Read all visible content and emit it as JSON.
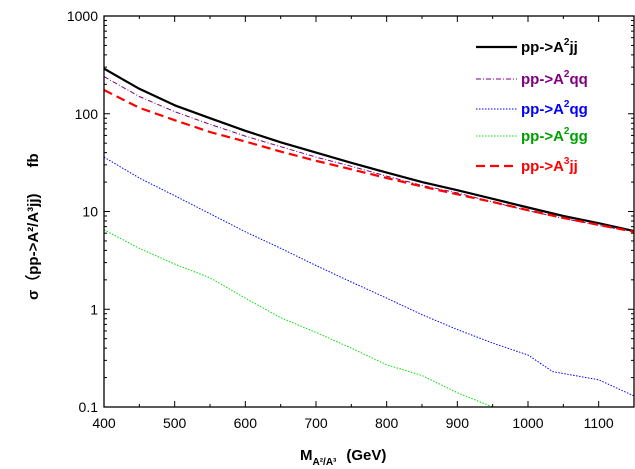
{
  "chart_data": {
    "type": "line",
    "xscale": "linear",
    "yscale": "log",
    "xlim": [
      400,
      1150
    ],
    "ylim": [
      0.1,
      1000
    ],
    "xticks": [
      {
        "value": 400,
        "label": "400"
      },
      {
        "value": 500,
        "label": "500"
      },
      {
        "value": 600,
        "label": "600"
      },
      {
        "value": 700,
        "label": "700"
      },
      {
        "value": 800,
        "label": "800"
      },
      {
        "value": 900,
        "label": "900"
      },
      {
        "value": 1000,
        "label": "1000"
      },
      {
        "value": 1100,
        "label": "1100"
      }
    ],
    "yticks": [
      {
        "value": 0.1,
        "label": "0.1"
      },
      {
        "value": 1,
        "label": "1"
      },
      {
        "value": 10,
        "label": "10"
      },
      {
        "value": 100,
        "label": "100"
      },
      {
        "value": 1000,
        "label": "1000"
      }
    ],
    "xlabel": {
      "main": "M",
      "sub": "A²/A³",
      "unit": "(GeV)"
    },
    "ylabel": {
      "text": "σ（pp->A²/A³jj)",
      "unit": "fb"
    },
    "grid": false,
    "legend_position": "top-right",
    "series": [
      {
        "name": "pp->A²jj",
        "color": "#000000",
        "dash": "solid",
        "width": 2.2,
        "x": [
          400,
          450,
          500,
          550,
          600,
          650,
          700,
          750,
          800,
          850,
          900,
          950,
          1000,
          1050,
          1100,
          1150
        ],
        "values": [
          290,
          180,
          122,
          90,
          67,
          51,
          40,
          31.5,
          25,
          20,
          16.5,
          13.5,
          11,
          9,
          7.6,
          6.3
        ]
      },
      {
        "name": "pp->A²qq",
        "color": "#800080",
        "dash": "dashdot",
        "width": 1,
        "x": [
          400,
          450,
          500,
          550,
          600,
          650,
          700,
          750,
          800,
          850,
          900,
          950,
          1000,
          1050,
          1100,
          1150
        ],
        "values": [
          240,
          150,
          105,
          78,
          59,
          46,
          36,
          29,
          23,
          18.5,
          15.5,
          12.5,
          10.2,
          8.5,
          7.2,
          6.2
        ]
      },
      {
        "name": "pp->A²qg",
        "color": "#0000ff",
        "dash": "dot",
        "width": 1,
        "x": [
          400,
          450,
          500,
          550,
          600,
          650,
          700,
          750,
          800,
          850,
          900,
          950,
          1000,
          1035,
          1050,
          1100,
          1150
        ],
        "values": [
          36,
          22,
          14.5,
          9.5,
          6.2,
          4.2,
          2.8,
          1.9,
          1.3,
          0.88,
          0.62,
          0.45,
          0.34,
          0.23,
          0.22,
          0.19,
          0.13
        ]
      },
      {
        "name": "pp->A²gg",
        "color": "#00e000",
        "dash": "dot",
        "width": 1,
        "x": [
          400,
          450,
          500,
          550,
          600,
          650,
          700,
          750,
          800,
          850,
          900,
          950
        ],
        "values": [
          6.5,
          4.2,
          2.9,
          2.1,
          1.3,
          0.82,
          0.58,
          0.4,
          0.27,
          0.21,
          0.14,
          0.1
        ]
      },
      {
        "name": "pp->A³jj",
        "color": "#ff0000",
        "dash": "dashed",
        "width": 2.2,
        "x": [
          400,
          450,
          500,
          550,
          600,
          650,
          700,
          750,
          800,
          850,
          900,
          950,
          1000,
          1050,
          1100,
          1150
        ],
        "values": [
          175,
          115,
          86,
          65,
          52,
          41,
          33,
          27,
          22,
          18,
          15,
          12.5,
          10.3,
          8.6,
          7.3,
          6.2
        ]
      }
    ]
  },
  "legend": [
    {
      "base": "pp->A",
      "sup": "2",
      "tail": "jj",
      "color": "#000000"
    },
    {
      "base": "pp->A",
      "sup": "2",
      "tail": "qq",
      "color": "#800080"
    },
    {
      "base": "pp->A",
      "sup": "2",
      "tail": "qg",
      "color": "#0000ff"
    },
    {
      "base": "pp->A",
      "sup": "2",
      "tail": "gg",
      "color": "#00a000"
    },
    {
      "base": "pp->A",
      "sup": "3",
      "tail": "jj",
      "color": "#ff0000"
    }
  ]
}
